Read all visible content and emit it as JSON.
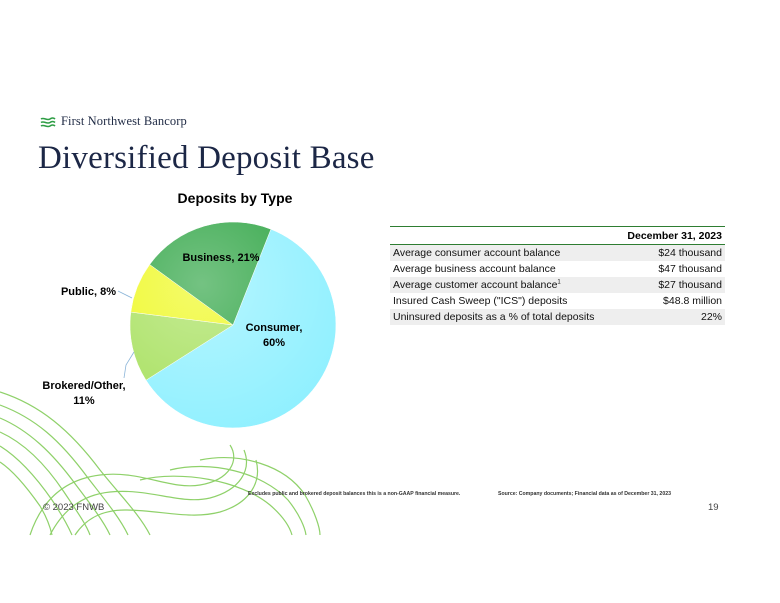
{
  "brand": {
    "logo_text": "First Northwest Bancorp"
  },
  "title": "Diversified Deposit Base",
  "chart_data": {
    "type": "pie",
    "title": "Deposits by Type",
    "slices": [
      {
        "label": "Consumer",
        "value": 60,
        "display": "Consumer,",
        "pct": "60%",
        "color": "#8ef0ff"
      },
      {
        "label": "Brokered/Other",
        "value": 11,
        "display": "Brokered/Other,",
        "pct": "11%",
        "color": "#a6e05c"
      },
      {
        "label": "Public",
        "value": 8,
        "display": "Public, 8%",
        "pct": "",
        "color": "#eef91c"
      },
      {
        "label": "Business",
        "value": 21,
        "display": "Business, 21%",
        "pct": "",
        "color": "#29a23f"
      }
    ]
  },
  "table": {
    "header": "December 31, 2023",
    "rows": [
      {
        "label": "Average consumer account balance",
        "value": "$24 thousand"
      },
      {
        "label": "Average business account balance",
        "value": "$47 thousand"
      },
      {
        "label": "Average customer account balance",
        "sup": "1",
        "value": "$27 thousand"
      },
      {
        "label": "Insured Cash Sweep (\"ICS\") deposits",
        "value": "$48.8 million"
      },
      {
        "label": "Uninsured deposits as a % of total deposits",
        "value": "22%"
      }
    ]
  },
  "footnotes": {
    "left": "Excludes public and brokered deposit balances this is a non-GAAP financial measure.",
    "right": "Source: Company documents; Financial data as of December 31, 2023"
  },
  "footer": {
    "copyright": "© 2023 FNWB",
    "page": "19"
  },
  "colors": {
    "title": "#1c2746",
    "rule": "#2e7d32",
    "line_art": "#8fd16a"
  }
}
